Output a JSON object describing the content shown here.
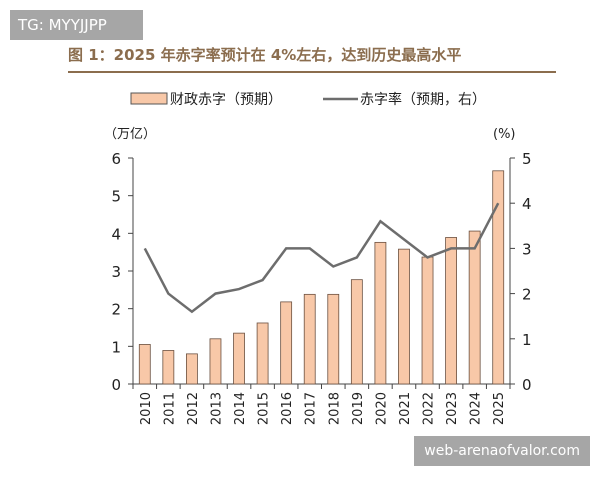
{
  "watermarks": {
    "top_left": "TG: MYYJJPP",
    "bottom_right": "web-arenaofvalor.com"
  },
  "chart_data": {
    "type": "bar",
    "title": "图 1：2025 年赤字率预计在 4%左右，达到历史最高水平",
    "categories": [
      "2010",
      "2011",
      "2012",
      "2013",
      "2014",
      "2015",
      "2016",
      "2017",
      "2018",
      "2019",
      "2020",
      "2021",
      "2022",
      "2023",
      "2024",
      "2025"
    ],
    "series": [
      {
        "name": "财政赤字（预期）",
        "type": "bar",
        "axis": "left",
        "color": "#f8c8a8",
        "values": [
          1.05,
          0.89,
          0.8,
          1.2,
          1.35,
          1.62,
          2.18,
          2.38,
          2.38,
          2.77,
          3.76,
          3.58,
          3.37,
          3.89,
          4.06,
          5.66
        ]
      },
      {
        "name": "赤字率（预期，右）",
        "type": "line",
        "axis": "right",
        "color": "#6d6d6d",
        "values": [
          3.0,
          2.0,
          1.6,
          2.0,
          2.1,
          2.3,
          3.0,
          3.0,
          2.6,
          2.8,
          3.6,
          3.2,
          2.8,
          3.0,
          3.0,
          4.0
        ]
      }
    ],
    "ylabel_left": "（万亿）",
    "ylabel_right": "(%)",
    "ylim_left": [
      0,
      6
    ],
    "ylim_right": [
      0,
      5
    ],
    "yticks_left": [
      "0",
      "1",
      "2",
      "3",
      "4",
      "5",
      "6"
    ],
    "yticks_right": [
      "0",
      "1",
      "2",
      "3",
      "4",
      "5"
    ],
    "grid": false,
    "legend": "top"
  }
}
